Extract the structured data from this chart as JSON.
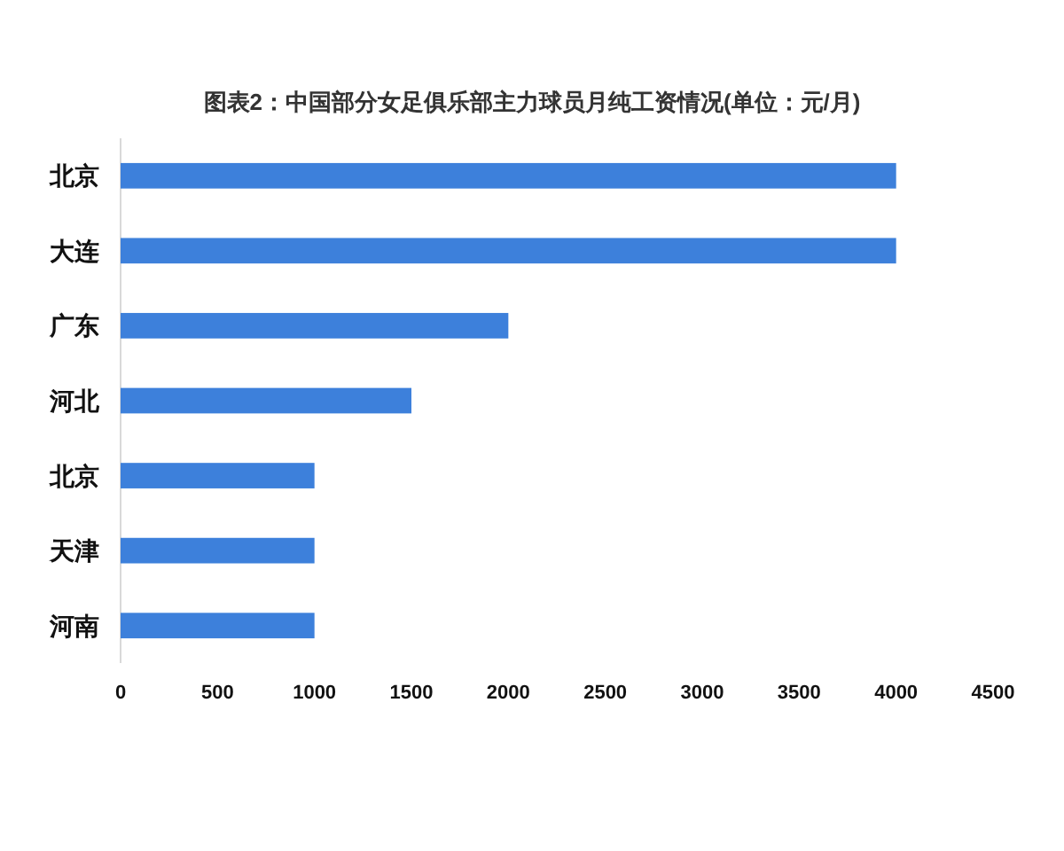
{
  "chart_data": {
    "type": "bar",
    "orientation": "horizontal",
    "title": "图表2：中国部分女足俱乐部主力球员月纯工资情况(单位：元/月)",
    "categories": [
      "北京",
      "大连",
      "广东",
      "河北",
      "北京",
      "天津",
      "河南"
    ],
    "values": [
      4000,
      4000,
      2000,
      1500,
      1000,
      1000,
      1000
    ],
    "color": "#3d80db",
    "xlim": [
      0,
      4500
    ],
    "xticks": [
      0,
      500,
      1000,
      1500,
      2000,
      2500,
      3000,
      3500,
      4000,
      4500
    ]
  }
}
